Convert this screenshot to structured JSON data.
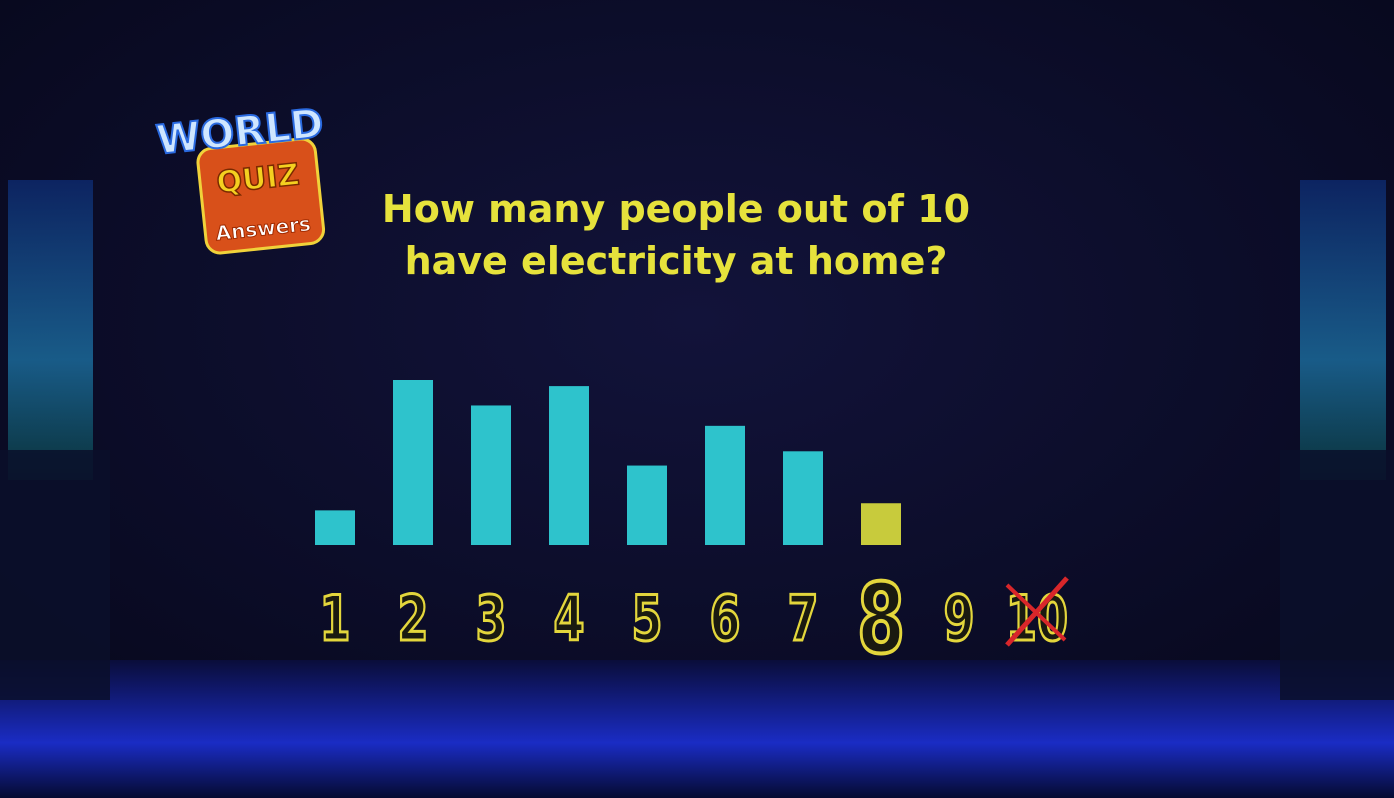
{
  "logo": {
    "line1": "WORLD",
    "line2": "QUIZ",
    "line3": "Answers"
  },
  "chart_data": {
    "type": "bar",
    "title": [
      "How many people out of 10",
      "have electricity at home?"
    ],
    "categories": [
      "1",
      "2",
      "3",
      "4",
      "5",
      "6",
      "7",
      "8",
      "9",
      "10"
    ],
    "values": [
      34,
      162,
      137,
      156,
      78,
      117,
      92,
      41,
      null,
      null
    ],
    "colors": [
      "#2ec3cc",
      "#2ec3cc",
      "#2ec3cc",
      "#2ec3cc",
      "#2ec3cc",
      "#2ec3cc",
      "#2ec3cc",
      "#c8cb3c",
      null,
      null
    ],
    "highlight": 7,
    "crossed_out": 9
  }
}
